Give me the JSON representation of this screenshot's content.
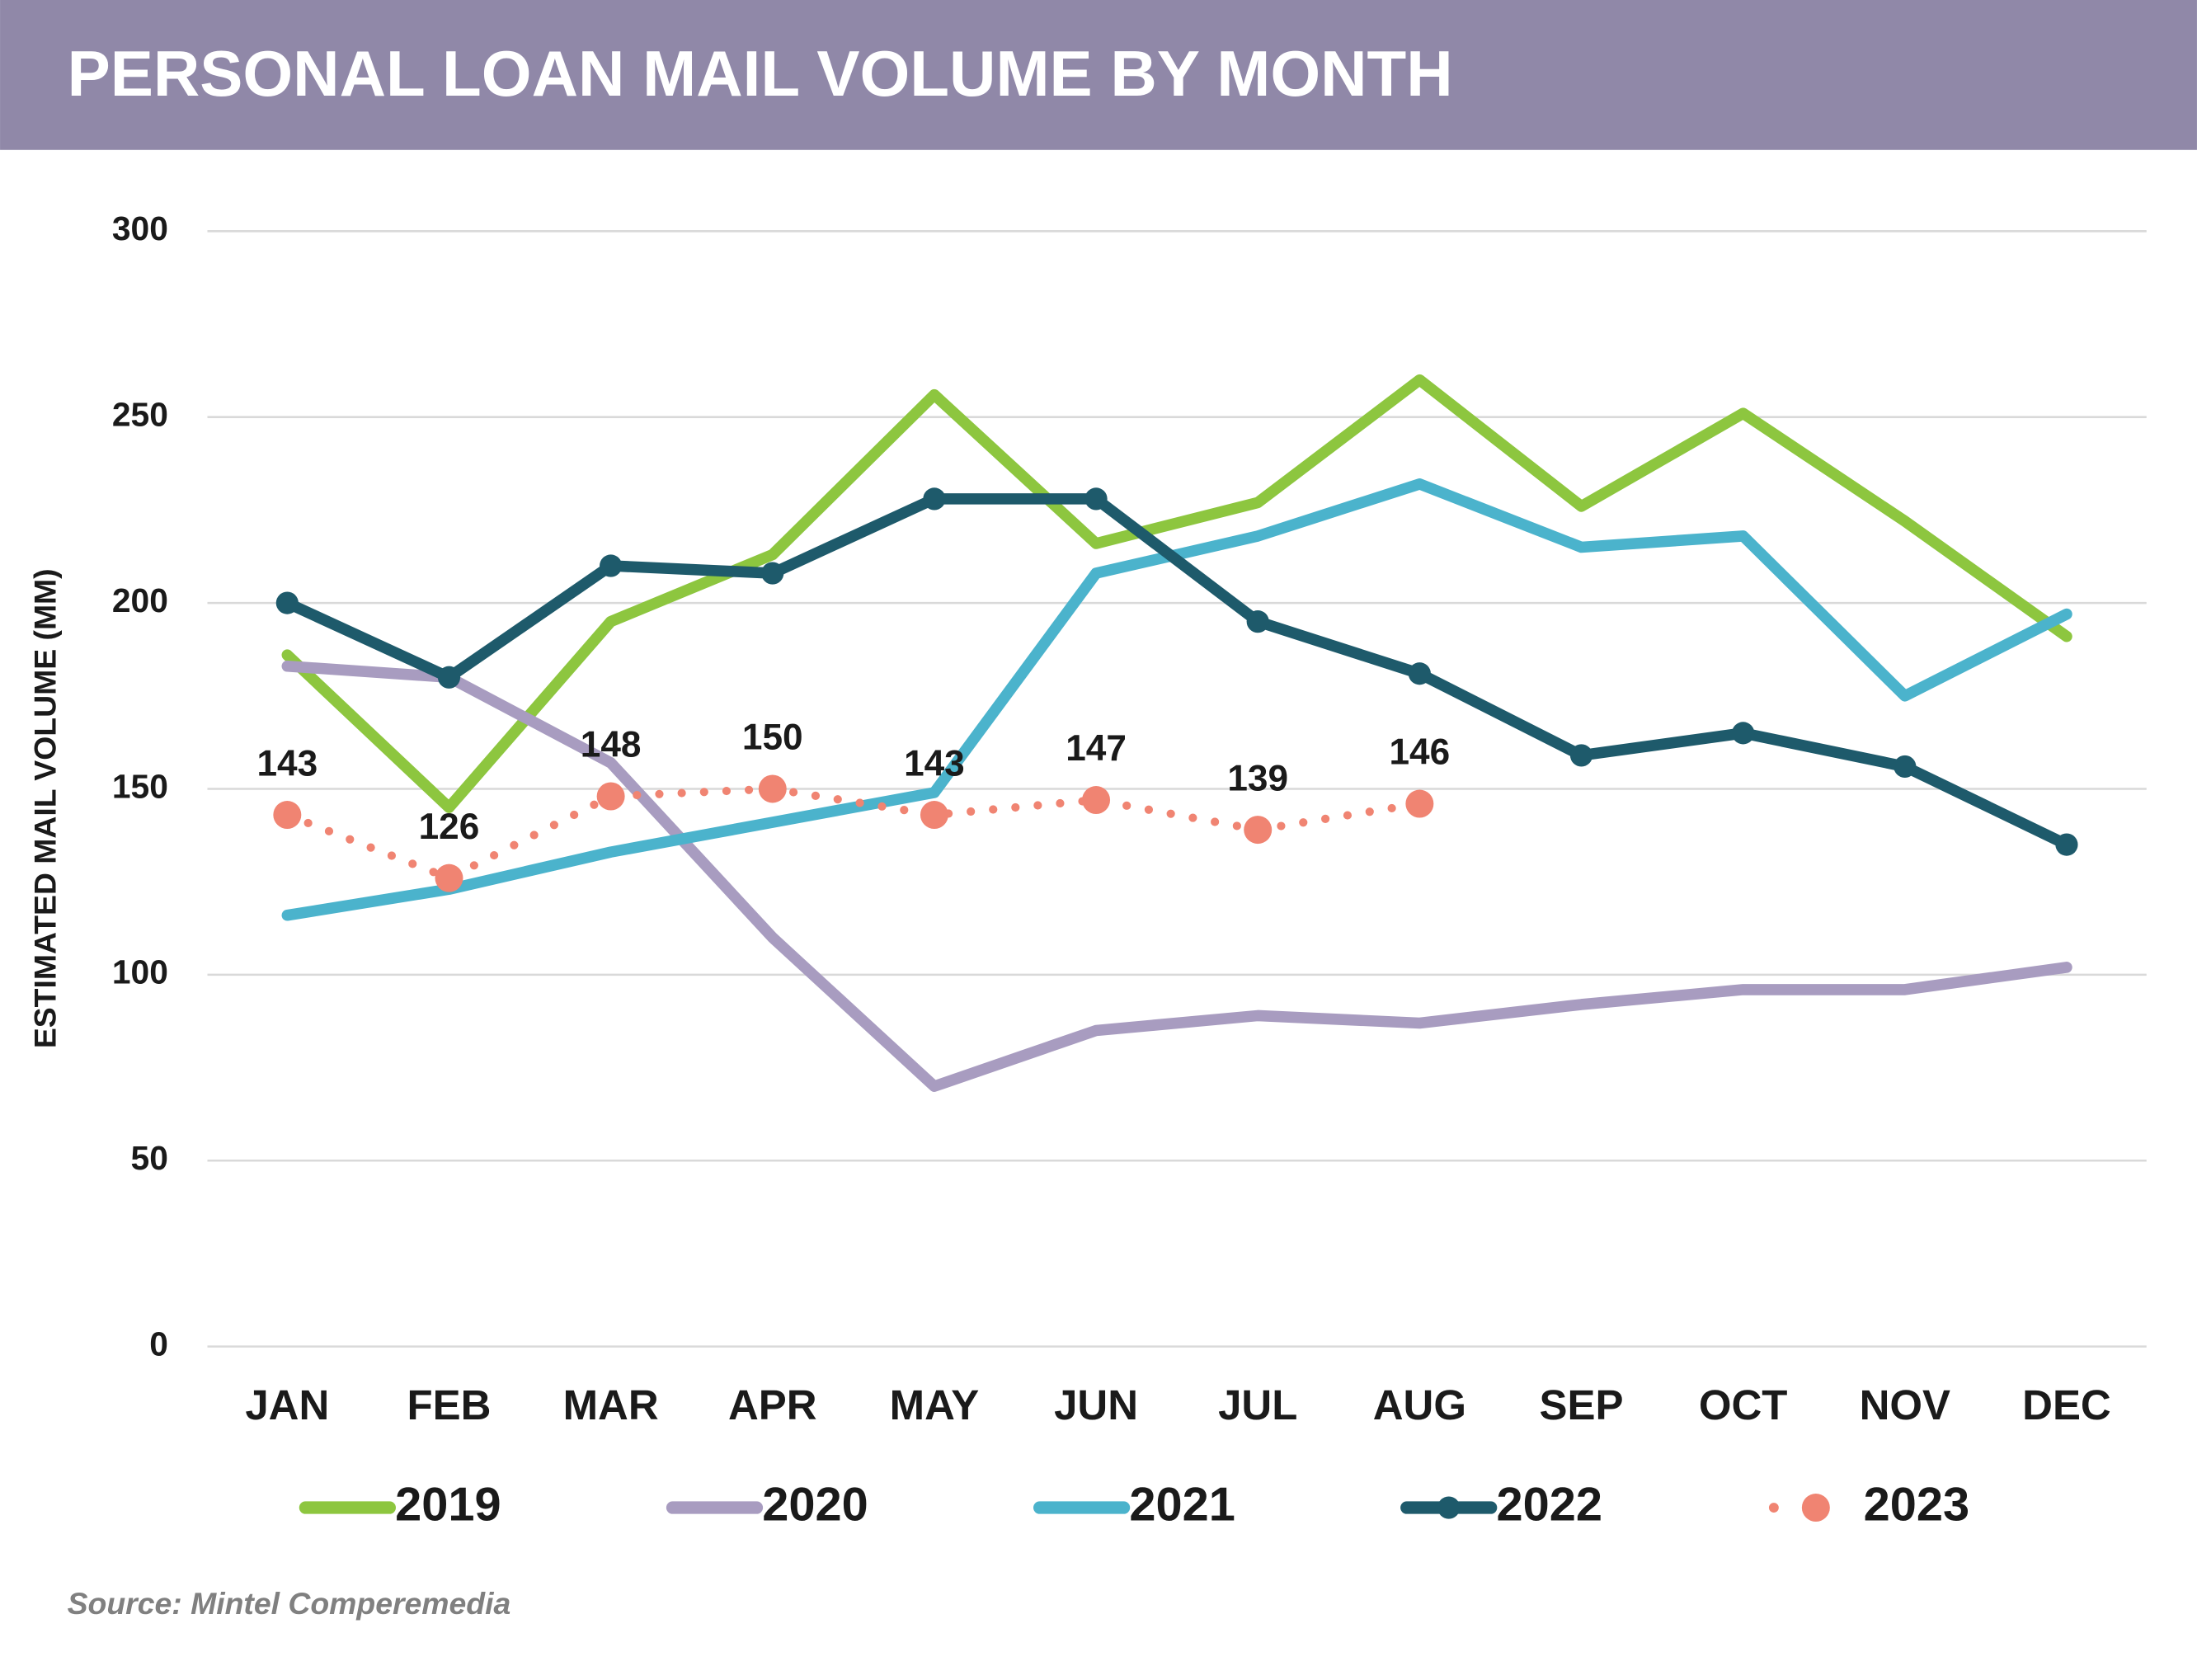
{
  "chart_data": {
    "type": "line",
    "title": "PERSONAL LOAN MAIL VOLUME BY MONTH",
    "y_label": "ESTIMATED MAIL VOLUME (MM)",
    "source": "Source: Mintel Comperemedia",
    "categories": [
      "JAN",
      "FEB",
      "MAR",
      "APR",
      "MAY",
      "JUN",
      "JUL",
      "AUG",
      "SEP",
      "OCT",
      "NOV",
      "DEC"
    ],
    "ylim": [
      0,
      300
    ],
    "yticks": [
      0,
      50,
      100,
      150,
      200,
      250,
      300
    ],
    "grid": true,
    "legend": "bottom",
    "series": [
      {
        "name": "2019",
        "color": "#8dc63f",
        "values": [
          186,
          145,
          195,
          213,
          256,
          216,
          227,
          260,
          226,
          251,
          222,
          191
        ]
      },
      {
        "name": "2020",
        "color": "#a89cc0",
        "values": [
          183,
          180,
          157,
          110,
          70,
          85,
          89,
          87,
          92,
          96,
          96,
          102
        ]
      },
      {
        "name": "2021",
        "color": "#4bb3cc",
        "values": [
          116,
          123,
          133,
          141,
          149,
          208,
          218,
          232,
          215,
          218,
          175,
          197
        ]
      },
      {
        "name": "2022",
        "color": "#1e5a6b",
        "marker": true,
        "values": [
          200,
          180,
          210,
          208,
          228,
          228,
          195,
          181,
          159,
          165,
          156,
          135
        ]
      },
      {
        "name": "2023",
        "color": "#f08472",
        "marker": true,
        "dotted": true,
        "data_labels": true,
        "values": [
          143,
          126,
          148,
          150,
          143,
          147,
          139,
          146,
          null,
          null,
          null,
          null
        ]
      }
    ]
  }
}
